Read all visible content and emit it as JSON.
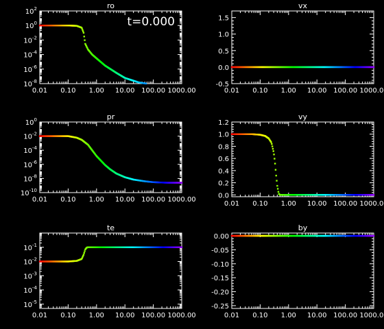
{
  "time_label": "t=0.000",
  "x_tick_labels": [
    "0.01",
    "0.10",
    "1.00",
    "10.00",
    "100.00",
    "1000.00"
  ],
  "chart_data": [
    {
      "type": "scatter",
      "title": "ro",
      "xscale": "log",
      "yscale": "log",
      "xlim": [
        0.01,
        1000
      ],
      "ylim": [
        1e-08,
        100
      ],
      "y_tick_labels": [
        "10^2",
        "10^0",
        "10^-2",
        "10^-4",
        "10^-6",
        "10^-8"
      ],
      "color": "rainbow (red→violet with increasing x)",
      "x": [
        0.01,
        0.02,
        0.05,
        0.1,
        0.2,
        0.3,
        0.35,
        0.4,
        0.5,
        0.7,
        1,
        2,
        5,
        10,
        30,
        100,
        300,
        1000
      ],
      "values": [
        1,
        1,
        1,
        1,
        0.9,
        0.5,
        0.1,
        0.003,
        0.0005,
        0.0001,
        3e-05,
        3e-06,
        3e-07,
        6e-08,
        1.5e-08,
        7e-09,
        5e-09,
        5e-09
      ]
    },
    {
      "type": "scatter",
      "title": "vx",
      "xscale": "log",
      "yscale": "linear",
      "xlim": [
        0.01,
        1000
      ],
      "ylim": [
        -0.5,
        1.7
      ],
      "y_tick_labels": [
        "1.5",
        "1.0",
        "0.5",
        "0.0",
        "-0.5"
      ],
      "y_ticks": [
        1.5,
        1.0,
        0.5,
        0.0,
        -0.5
      ],
      "color": "rainbow (red→violet with increasing x)",
      "x": [
        0.01,
        0.1,
        1,
        10,
        100,
        1000
      ],
      "values": [
        0,
        0,
        0,
        0,
        0,
        0
      ]
    },
    {
      "type": "scatter",
      "title": "pr",
      "xscale": "log",
      "yscale": "log",
      "xlim": [
        0.01,
        1000
      ],
      "ylim": [
        1e-10,
        1
      ],
      "y_tick_labels": [
        "10^0",
        "10^-2",
        "10^-4",
        "10^-6",
        "10^-8",
        "10^-10"
      ],
      "color": "rainbow (red→violet with increasing x)",
      "x": [
        0.01,
        0.02,
        0.05,
        0.1,
        0.2,
        0.3,
        0.5,
        0.7,
        1,
        2,
        3,
        5,
        10,
        20,
        50,
        100,
        300,
        1000
      ],
      "values": [
        0.01,
        0.01,
        0.01,
        0.01,
        0.006,
        0.003,
        0.0006,
        0.0001,
        1.5e-05,
        8e-07,
        2e-07,
        5e-08,
        1.5e-08,
        7e-09,
        4e-09,
        3e-09,
        2.5e-09,
        2.5e-09
      ]
    },
    {
      "type": "scatter",
      "title": "vy",
      "xscale": "log",
      "yscale": "linear",
      "xlim": [
        0.01,
        1000
      ],
      "ylim": [
        -0.03,
        1.2
      ],
      "y_tick_labels": [
        "1.2",
        "1.0",
        "0.8",
        "0.6",
        "0.4",
        "0.2",
        "0.0"
      ],
      "y_ticks": [
        1.2,
        1.0,
        0.8,
        0.6,
        0.4,
        0.2,
        0.0
      ],
      "color": "rainbow (red→violet with increasing x)",
      "x": [
        0.01,
        0.05,
        0.1,
        0.15,
        0.2,
        0.25,
        0.3,
        0.33,
        0.36,
        0.4,
        0.45,
        0.5,
        1,
        10,
        100,
        1000
      ],
      "values": [
        1.0,
        1.0,
        0.99,
        0.97,
        0.93,
        0.86,
        0.7,
        0.55,
        0.35,
        0.15,
        0.02,
        0,
        0,
        0,
        0,
        0
      ]
    },
    {
      "type": "scatter",
      "title": "te",
      "xscale": "log",
      "yscale": "log",
      "xlim": [
        0.01,
        1000
      ],
      "ylim": [
        5e-06,
        1
      ],
      "y_tick_labels": [
        "10^-1",
        "10^-2",
        "10^-3",
        "10^-4",
        "10^-5"
      ],
      "color": "rainbow (red→violet with increasing x)",
      "x": [
        0.01,
        0.05,
        0.1,
        0.2,
        0.3,
        0.35,
        0.4,
        0.45,
        0.5,
        1,
        10,
        100,
        1000
      ],
      "values": [
        0.01,
        0.01,
        0.01,
        0.011,
        0.015,
        0.03,
        0.07,
        0.095,
        0.1,
        0.1,
        0.1,
        0.1,
        0.1
      ]
    },
    {
      "type": "scatter",
      "title": "by",
      "xscale": "log",
      "yscale": "linear",
      "xlim": [
        0.01,
        1000
      ],
      "ylim": [
        -0.26,
        0.01
      ],
      "y_tick_labels": [
        "0.00",
        "-0.05",
        "-0.10",
        "-0.15",
        "-0.20",
        "-0.25"
      ],
      "y_ticks": [
        0.0,
        -0.05,
        -0.1,
        -0.15,
        -0.2,
        -0.25
      ],
      "color": "rainbow (red→violet with increasing x)",
      "x": [
        0.01,
        0.1,
        1,
        10,
        100,
        1000
      ],
      "values": [
        0,
        0,
        0,
        0,
        0,
        0
      ]
    }
  ]
}
